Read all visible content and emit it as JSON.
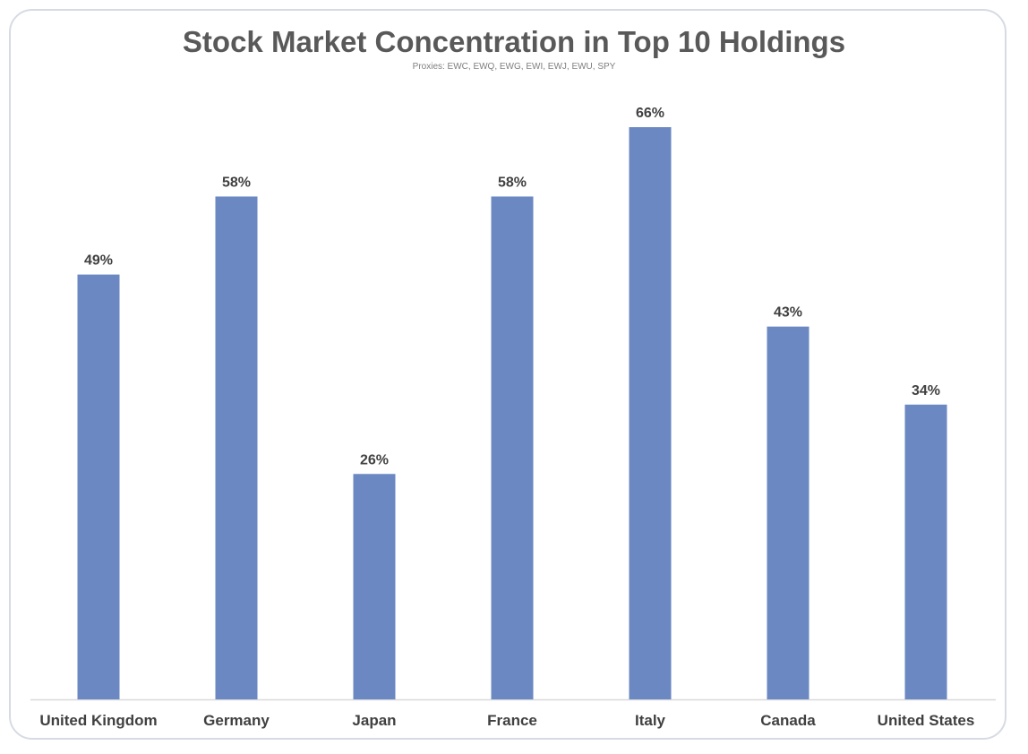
{
  "chart_data": {
    "type": "bar",
    "title": "Stock Market Concentration in Top 10 Holdings",
    "subtitle": "Proxies: EWC, EWQ, EWG, EWI, EWJ, EWU, SPY",
    "xlabel": "",
    "ylabel": "",
    "categories": [
      "United Kingdom",
      "Germany",
      "Japan",
      "France",
      "Italy",
      "Canada",
      "United States"
    ],
    "values": [
      49,
      58,
      26,
      58,
      66,
      43,
      34
    ],
    "value_labels": [
      "49%",
      "58%",
      "26%",
      "58%",
      "66%",
      "43%",
      "34%"
    ],
    "unit": "%",
    "ylim": [
      0,
      66
    ],
    "grid": false,
    "legend": "none",
    "bar_color": "#6b88c2",
    "axis_color": "#d9d9d9"
  }
}
